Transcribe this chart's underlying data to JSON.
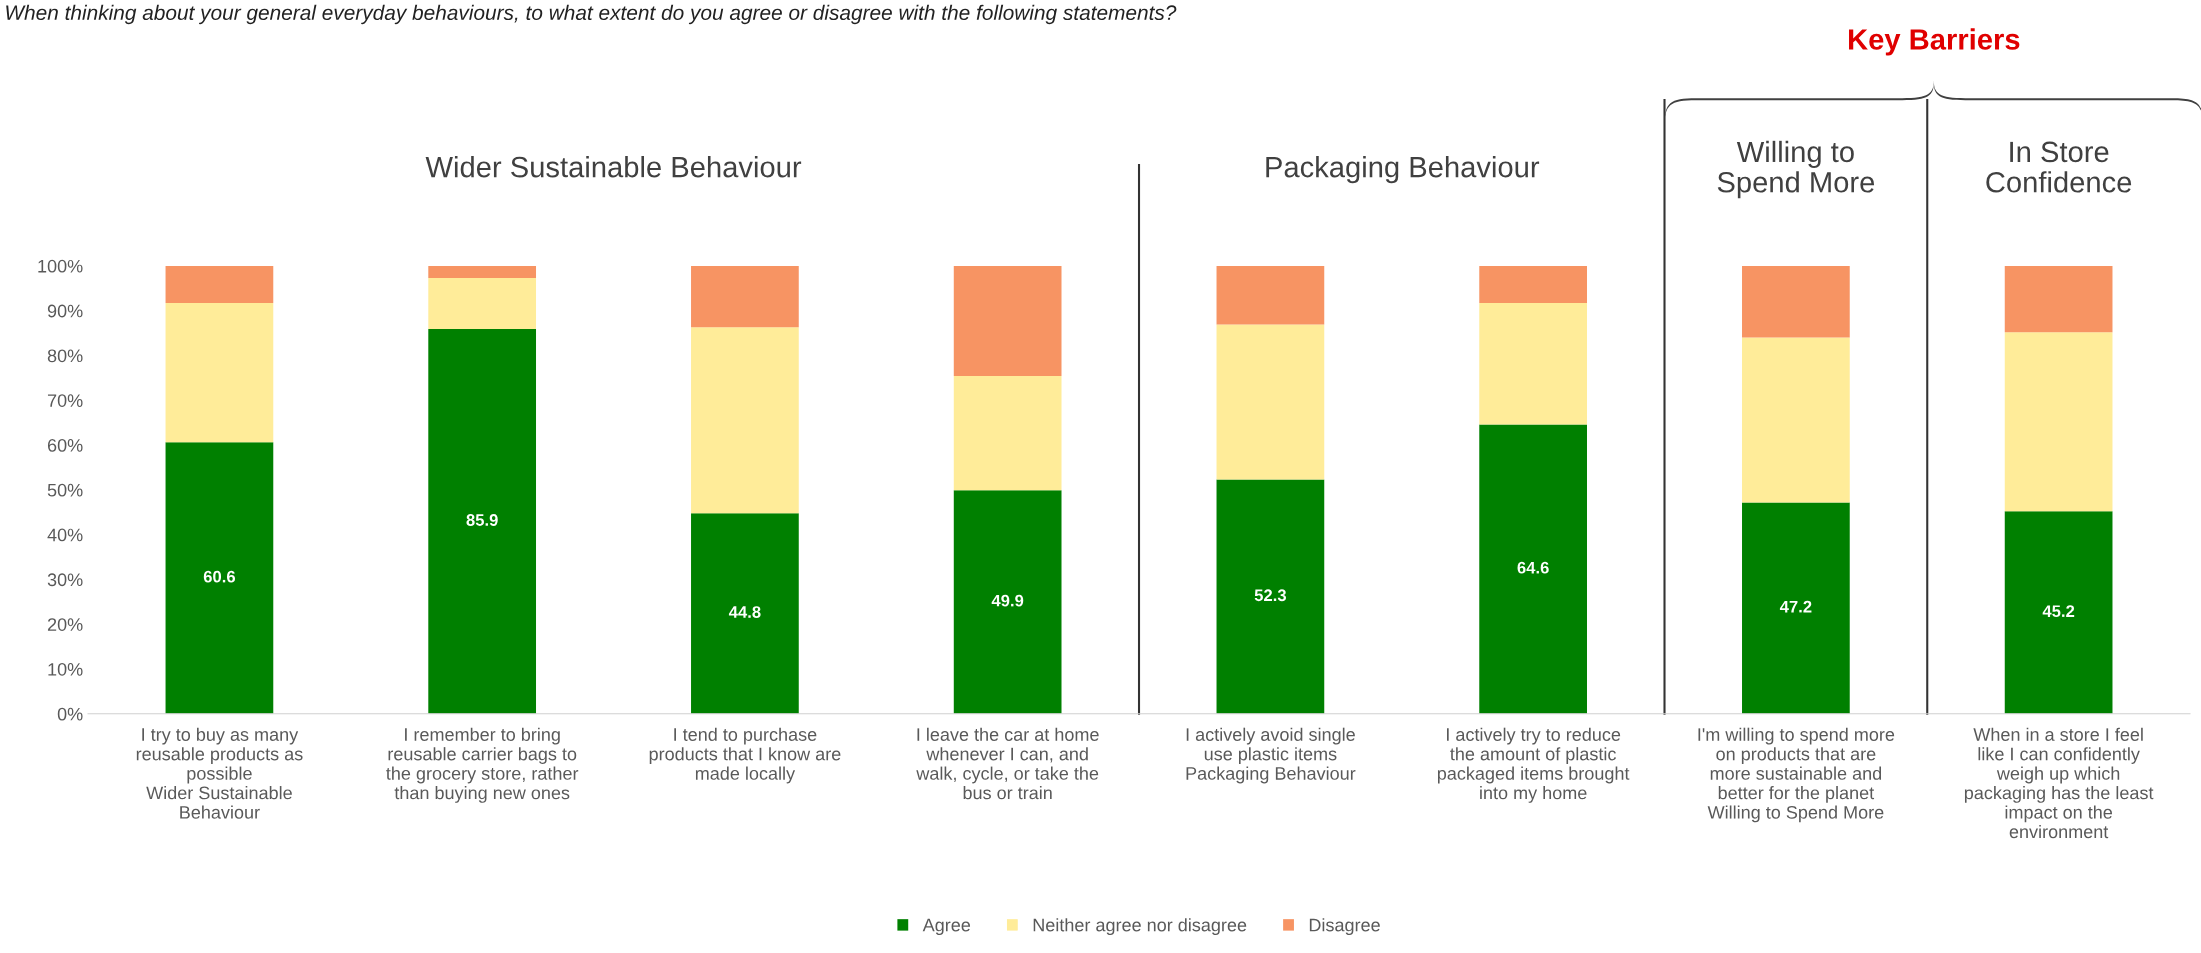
{
  "chart_data": {
    "type": "bar",
    "stacked": true,
    "title": "When thinking about your general everyday behaviours, to what extent do you agree or disagree with the following statements?",
    "categories": [
      "I try to buy as many\nreusable products as\npossible\nWider Sustainable\nBehaviour",
      "I remember to bring\nreusable carrier bags to\nthe grocery store, rather\nthan buying new ones",
      "I tend to purchase\nproducts that I know are\nmade locally",
      "I leave the car at home\nwhenever I can, and\nwalk, cycle, or take the\nbus or train",
      "I actively avoid single\nuse plastic items\nPackaging Behaviour",
      "I actively try to reduce\nthe amount of plastic\npackaged items brought\ninto my home",
      "I'm willing to spend more\non products that are\nmore sustainable and\nbetter for the planet\nWilling to Spend More",
      "When in a store I feel\nlike I can confidently\nweigh up which\npackaging has the least\nimpact on the\nenvironment"
    ],
    "series": [
      {
        "name": "Agree",
        "color": "#008000",
        "values": [
          60.6,
          85.9,
          44.8,
          49.9,
          52.3,
          64.6,
          47.2,
          45.2
        ],
        "value_labels": [
          "60.6",
          "85.9",
          "44.8",
          "49.9",
          "52.3",
          "64.6",
          "47.2",
          "45.2"
        ]
      },
      {
        "name": "Neither agree nor disagree",
        "color": "#ffec99",
        "values": [
          31.1,
          11.4,
          41.5,
          25.5,
          34.6,
          27.1,
          36.8,
          40.0
        ]
      },
      {
        "name": "Disagree",
        "color": "#f79463",
        "values": [
          8.3,
          2.7,
          13.7,
          24.6,
          13.1,
          8.3,
          16.0,
          14.8
        ]
      }
    ],
    "ylim": [
      0,
      100
    ],
    "yticks": [
      {
        "value": 0,
        "label": "0%"
      },
      {
        "value": 10,
        "label": "10%"
      },
      {
        "value": 20,
        "label": "20%"
      },
      {
        "value": 30,
        "label": "30%"
      },
      {
        "value": 40,
        "label": "40%"
      },
      {
        "value": 50,
        "label": "50%"
      },
      {
        "value": 60,
        "label": "60%"
      },
      {
        "value": 70,
        "label": "70%"
      },
      {
        "value": 80,
        "label": "80%"
      },
      {
        "value": 90,
        "label": "90%"
      },
      {
        "value": 100,
        "label": "100%"
      }
    ],
    "annotations": [
      "Wider Sustainable Behaviour",
      "Packaging Behaviour",
      "Willing to\nSpend More",
      "In Store\nConfidence",
      "Key Barriers"
    ],
    "legend": "bottom",
    "grid": false
  }
}
